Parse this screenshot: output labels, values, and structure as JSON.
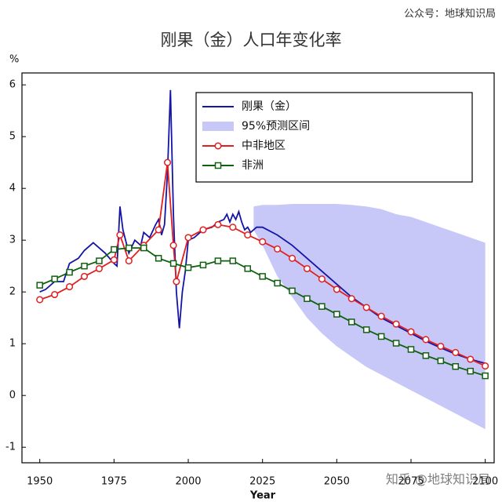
{
  "chart_data": {
    "type": "line",
    "title": "刚果（金）人口年变化率",
    "source": "公众号：地球知识局",
    "watermark": "知乎 @地球知识局",
    "y_label": "%",
    "x_label": "Year",
    "xlim": [
      1944,
      2103
    ],
    "xticks": [
      1950,
      1975,
      2000,
      2025,
      2050,
      2075,
      2100
    ],
    "ylim": [
      -1.3,
      6.23
    ],
    "yticks": [
      -1,
      0,
      1,
      2,
      3,
      4,
      5,
      6
    ],
    "legend": "upper right",
    "band": {
      "name": "95%预测区间",
      "color": "#c8c8f8",
      "x": [
        2022,
        2025,
        2030,
        2035,
        2040,
        2045,
        2050,
        2055,
        2060,
        2065,
        2070,
        2075,
        2080,
        2085,
        2090,
        2095,
        2100
      ],
      "upper": [
        3.65,
        3.68,
        3.68,
        3.7,
        3.7,
        3.7,
        3.7,
        3.68,
        3.65,
        3.6,
        3.5,
        3.45,
        3.35,
        3.25,
        3.15,
        3.05,
        2.95
      ],
      "lower": [
        3.2,
        2.9,
        2.3,
        1.9,
        1.5,
        1.2,
        0.95,
        0.75,
        0.55,
        0.4,
        0.25,
        0.1,
        -0.05,
        -0.2,
        -0.35,
        -0.5,
        -0.65
      ]
    },
    "series": [
      {
        "name": "刚果（金）",
        "color": "#1414a8",
        "marker": "none",
        "x": [
          1950,
          1952,
          1955,
          1958,
          1960,
          1963,
          1965,
          1968,
          1970,
          1972,
          1975,
          1976,
          1977,
          1978,
          1980,
          1982,
          1984,
          1985,
          1987,
          1989,
          1990,
          1991,
          1992,
          1993,
          1994,
          1995,
          1996,
          1997,
          1998,
          1999,
          2000,
          2002,
          2005,
          2008,
          2010,
          2012,
          2013,
          2014,
          2015,
          2016,
          2017,
          2018,
          2019,
          2020,
          2021,
          2023,
          2025,
          2030,
          2035,
          2040,
          2045,
          2050,
          2055,
          2060,
          2065,
          2070,
          2075,
          2080,
          2085,
          2090,
          2095,
          2100
        ],
        "values": [
          2.0,
          2.05,
          2.2,
          2.2,
          2.55,
          2.65,
          2.8,
          2.95,
          2.85,
          2.75,
          2.55,
          2.5,
          3.65,
          3.2,
          2.75,
          3.0,
          2.9,
          3.15,
          3.05,
          3.3,
          3.4,
          3.1,
          3.3,
          4.3,
          5.9,
          3.5,
          2.0,
          1.3,
          2.0,
          2.4,
          3.0,
          3.05,
          3.2,
          3.25,
          3.35,
          3.4,
          3.5,
          3.35,
          3.5,
          3.4,
          3.55,
          3.35,
          3.2,
          3.25,
          3.15,
          3.25,
          3.25,
          3.1,
          2.9,
          2.65,
          2.4,
          2.15,
          1.9,
          1.7,
          1.5,
          1.35,
          1.2,
          1.05,
          0.92,
          0.8,
          0.7,
          0.62
        ]
      },
      {
        "name": "中非地区",
        "color": "#e02020",
        "marker": "circle",
        "x": [
          1950,
          1955,
          1960,
          1965,
          1970,
          1975,
          1977,
          1980,
          1985,
          1990,
          1993,
          1995,
          1996,
          2000,
          2005,
          2010,
          2015,
          2020,
          2025,
          2030,
          2035,
          2040,
          2045,
          2050,
          2055,
          2060,
          2065,
          2070,
          2075,
          2080,
          2085,
          2090,
          2095,
          2100
        ],
        "values": [
          1.85,
          1.95,
          2.1,
          2.3,
          2.45,
          2.62,
          3.1,
          2.6,
          2.9,
          3.2,
          4.5,
          2.9,
          2.2,
          3.05,
          3.2,
          3.3,
          3.25,
          3.1,
          2.97,
          2.83,
          2.65,
          2.45,
          2.25,
          2.05,
          1.87,
          1.7,
          1.53,
          1.38,
          1.23,
          1.08,
          0.95,
          0.83,
          0.7,
          0.57
        ]
      },
      {
        "name": "非洲",
        "color": "#106010",
        "marker": "square",
        "x": [
          1950,
          1955,
          1960,
          1965,
          1970,
          1975,
          1980,
          1985,
          1990,
          1995,
          2000,
          2005,
          2010,
          2015,
          2020,
          2025,
          2030,
          2035,
          2040,
          2045,
          2050,
          2055,
          2060,
          2065,
          2070,
          2075,
          2080,
          2085,
          2090,
          2095,
          2100
        ],
        "values": [
          2.13,
          2.25,
          2.38,
          2.5,
          2.6,
          2.82,
          2.85,
          2.85,
          2.65,
          2.55,
          2.47,
          2.52,
          2.6,
          2.6,
          2.45,
          2.3,
          2.17,
          2.02,
          1.87,
          1.72,
          1.57,
          1.42,
          1.27,
          1.14,
          1.01,
          0.89,
          0.77,
          0.67,
          0.56,
          0.47,
          0.38
        ]
      }
    ]
  }
}
